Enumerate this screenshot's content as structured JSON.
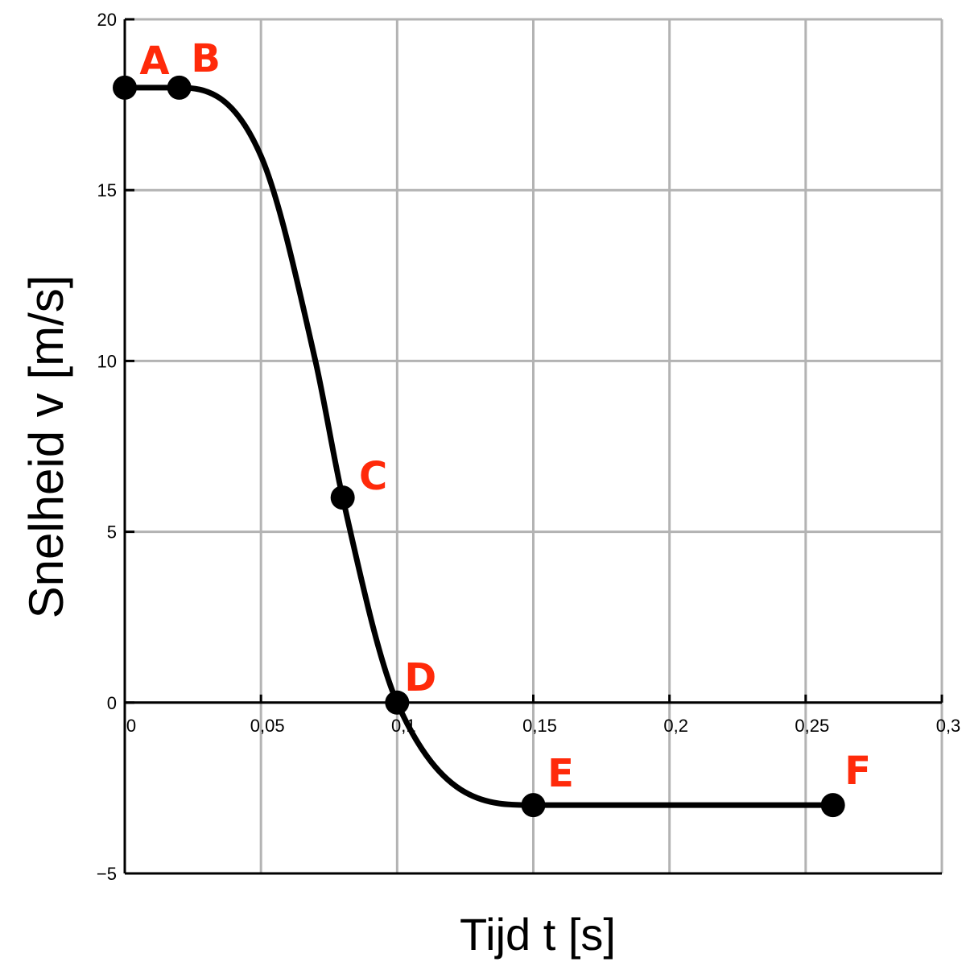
{
  "chart_data": {
    "type": "line",
    "xlabel": "Tijd t [s]",
    "ylabel": "Snelheid v [m/s]",
    "xlim": [
      0,
      0.3
    ],
    "ylim": [
      -5,
      20
    ],
    "x_ticks": [
      {
        "value": 0,
        "label": "0"
      },
      {
        "value": 0.05,
        "label": "0,05"
      },
      {
        "value": 0.1,
        "label": "0,1"
      },
      {
        "value": 0.15,
        "label": "0,15"
      },
      {
        "value": 0.2,
        "label": "0,2"
      },
      {
        "value": 0.25,
        "label": "0,25"
      },
      {
        "value": 0.3,
        "label": "0,3"
      }
    ],
    "y_ticks": [
      {
        "value": 20,
        "label": "20"
      },
      {
        "value": 15,
        "label": "15"
      },
      {
        "value": 10,
        "label": "10"
      },
      {
        "value": 5,
        "label": "5"
      },
      {
        "value": 0,
        "label": "0"
      },
      {
        "value": -5,
        "label": "−5"
      }
    ],
    "grid": true,
    "series": [
      {
        "color": "#000000",
        "curve": [
          {
            "x": 0,
            "y": 18
          },
          {
            "x": 0.02,
            "y": 18
          },
          {
            "x": 0.05,
            "y": 16
          },
          {
            "x": 0.07,
            "y": 10
          },
          {
            "x": 0.08,
            "y": 6
          },
          {
            "x": 0.1,
            "y": 0
          },
          {
            "x": 0.15,
            "y": -3
          },
          {
            "x": 0.26,
            "y": -3
          }
        ]
      }
    ],
    "points": [
      {
        "label": "A",
        "x": 0,
        "y": 18
      },
      {
        "label": "B",
        "x": 0.02,
        "y": 18
      },
      {
        "label": "C",
        "x": 0.08,
        "y": 6
      },
      {
        "label": "D",
        "x": 0.1,
        "y": 0
      },
      {
        "label": "E",
        "x": 0.15,
        "y": -3
      },
      {
        "label": "F",
        "x": 0.26,
        "y": -3
      }
    ],
    "point_label_color": "#ff2a0a"
  }
}
